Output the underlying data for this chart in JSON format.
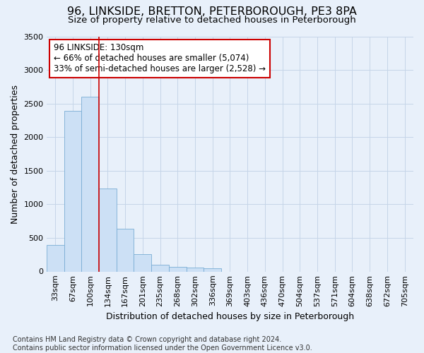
{
  "title": "96, LINKSIDE, BRETTON, PETERBOROUGH, PE3 8PA",
  "subtitle": "Size of property relative to detached houses in Peterborough",
  "xlabel": "Distribution of detached houses by size in Peterborough",
  "ylabel": "Number of detached properties",
  "footnote": "Contains HM Land Registry data © Crown copyright and database right 2024.\nContains public sector information licensed under the Open Government Licence v3.0.",
  "categories": [
    "33sqm",
    "67sqm",
    "100sqm",
    "134sqm",
    "167sqm",
    "201sqm",
    "235sqm",
    "268sqm",
    "302sqm",
    "336sqm",
    "369sqm",
    "403sqm",
    "436sqm",
    "470sqm",
    "504sqm",
    "537sqm",
    "571sqm",
    "604sqm",
    "638sqm",
    "672sqm",
    "705sqm"
  ],
  "bar_values": [
    390,
    2390,
    2600,
    1240,
    640,
    255,
    105,
    65,
    55,
    50,
    0,
    0,
    0,
    0,
    0,
    0,
    0,
    0,
    0,
    0,
    0
  ],
  "bar_color": "#cce0f5",
  "bar_edge_color": "#7aadd4",
  "grid_color": "#c5d5e8",
  "background_color": "#e8f0fa",
  "red_line_index": 3,
  "annotation_line1": "96 LINKSIDE: 130sqm",
  "annotation_line2": "← 66% of detached houses are smaller (5,074)",
  "annotation_line3": "33% of semi-detached houses are larger (2,528) →",
  "annotation_box_color": "#ffffff",
  "annotation_border_color": "#cc0000",
  "ylim": [
    0,
    3500
  ],
  "yticks": [
    0,
    500,
    1000,
    1500,
    2000,
    2500,
    3000,
    3500
  ],
  "title_fontsize": 11.5,
  "subtitle_fontsize": 9.5,
  "axis_label_fontsize": 9,
  "tick_fontsize": 8,
  "annotation_fontsize": 8.5,
  "footnote_fontsize": 7
}
